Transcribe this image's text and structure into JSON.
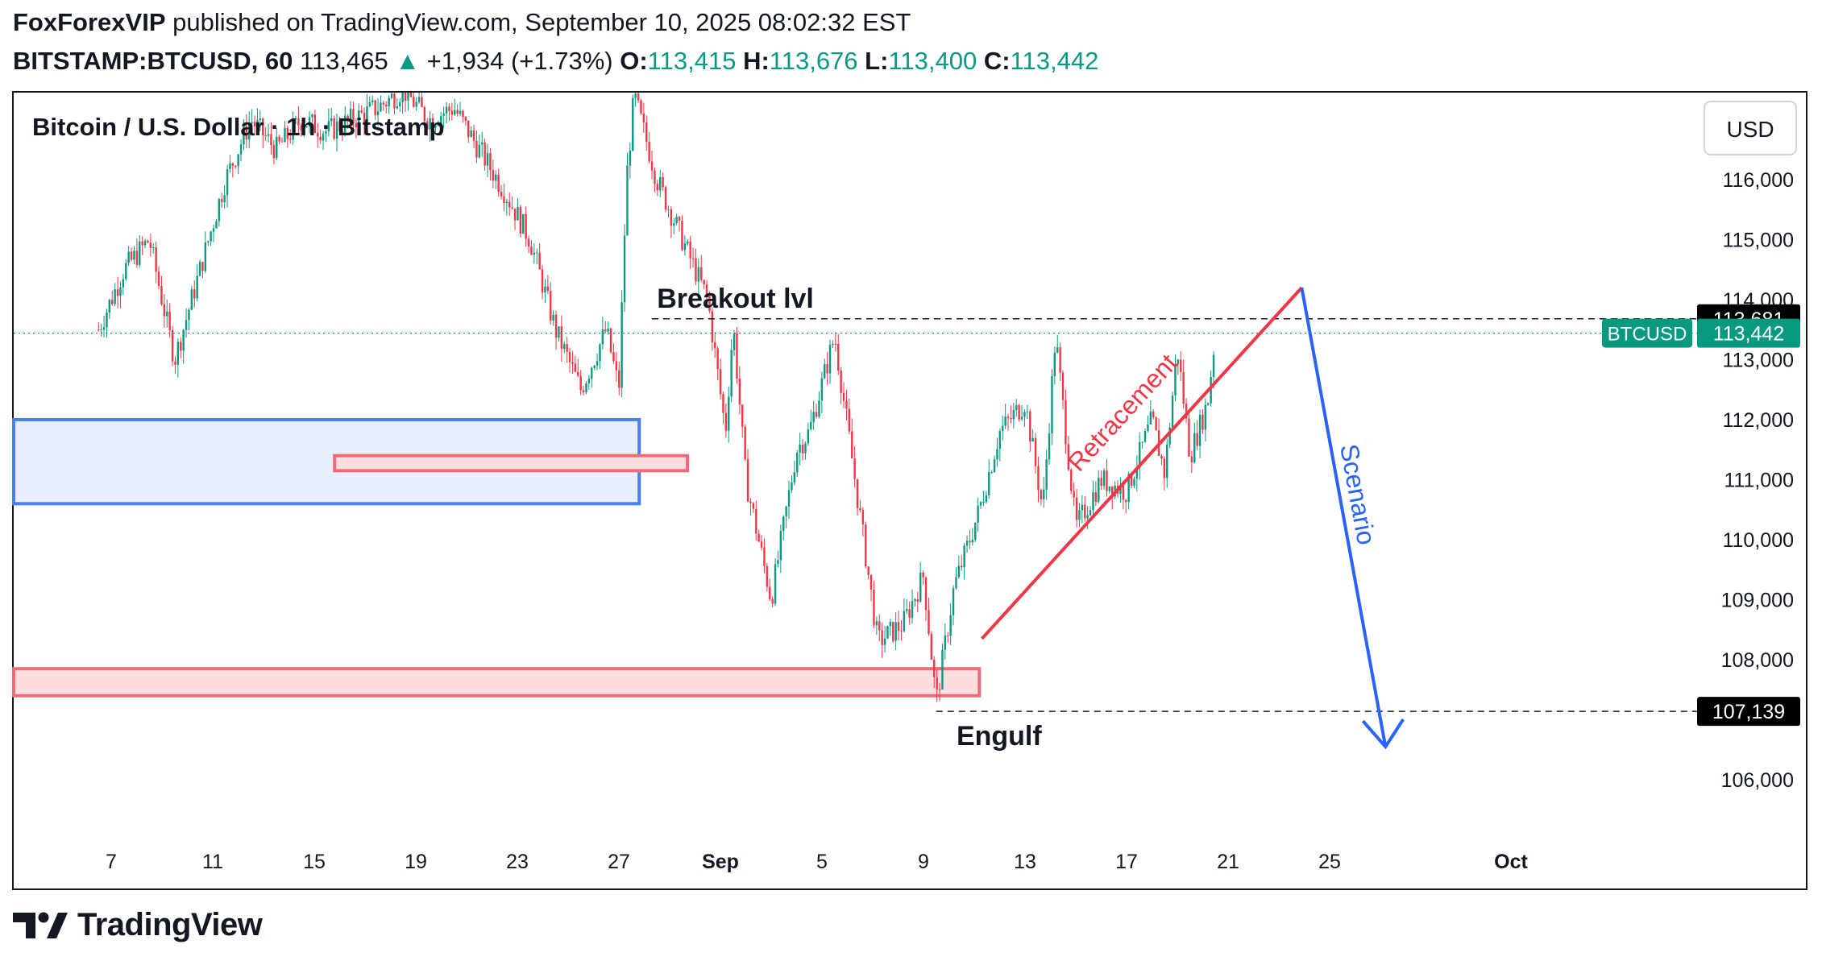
{
  "header": {
    "author": "FoxForexVIP",
    "published_text": "published on TradingView.com, September 10, 2025 08:02:32 EST",
    "symbol": "BITSTAMP:BTCUSD, 60",
    "last": "113,465",
    "change_arrow": "▲",
    "change": "+1,934 (+1.73%)",
    "open_label": "O:",
    "open": "113,415",
    "high_label": "H:",
    "high": "113,676",
    "low_label": "L:",
    "low": "113,400",
    "close_label": "C:",
    "close": "113,442"
  },
  "chart_title": "Bitcoin / U.S. Dollar · 1h · Bitstamp",
  "currency_button": "USD",
  "footer": {
    "brand": "TradingView"
  },
  "colors": {
    "up": "#089981",
    "down": "#f23645",
    "blue": "#2962ff",
    "zone_blue_stroke": "#4a7dff",
    "zone_blue_fill": "#e8efff",
    "zone_red_stroke": "#f06b78",
    "zone_red_fill": "#fcdde0"
  },
  "chart_data": {
    "type": "candlestick",
    "title": "Bitcoin / U.S. Dollar · 1h · Bitstamp",
    "ylim": [
      105000,
      117500
    ],
    "x_ticks": [
      {
        "label": "7",
        "bold": false
      },
      {
        "label": "11",
        "bold": false
      },
      {
        "label": "15",
        "bold": false
      },
      {
        "label": "19",
        "bold": false
      },
      {
        "label": "23",
        "bold": false
      },
      {
        "label": "27",
        "bold": false
      },
      {
        "label": "Sep",
        "bold": true
      },
      {
        "label": "5",
        "bold": false
      },
      {
        "label": "9",
        "bold": false
      },
      {
        "label": "13",
        "bold": false
      },
      {
        "label": "17",
        "bold": false
      },
      {
        "label": "21",
        "bold": false
      },
      {
        "label": "25",
        "bold": false
      },
      {
        "label": "Oct",
        "bold": true
      }
    ],
    "y_ticks": [
      {
        "label": "116,000",
        "value": 116000
      },
      {
        "label": "115,000",
        "value": 115000
      },
      {
        "label": "114,000",
        "value": 114000
      },
      {
        "label": "113,000",
        "value": 113000
      },
      {
        "label": "112,000",
        "value": 112000
      },
      {
        "label": "111,000",
        "value": 111000
      },
      {
        "label": "110,000",
        "value": 110000
      },
      {
        "label": "109,000",
        "value": 109000
      },
      {
        "label": "108,000",
        "value": 108000
      },
      {
        "label": "106,000",
        "value": 106000
      }
    ],
    "price_labels": [
      {
        "label": "113,681",
        "value": 113681,
        "style": "black"
      },
      {
        "label": "113,442",
        "value": 113442,
        "style": "green",
        "tag": "BTCUSD"
      },
      {
        "label": "107,139",
        "value": 107139,
        "style": "black"
      }
    ],
    "price_path": [
      [
        3.5,
        113500
      ],
      [
        4.5,
        114500
      ],
      [
        5.5,
        115000
      ],
      [
        6.5,
        113000
      ],
      [
        7.5,
        114500
      ],
      [
        8.5,
        116000
      ],
      [
        9.5,
        117000
      ],
      [
        10.5,
        116500
      ],
      [
        11.5,
        117000
      ],
      [
        12.5,
        116800
      ],
      [
        13.5,
        117000
      ],
      [
        14.5,
        117200
      ],
      [
        15.5,
        117500
      ],
      [
        16.5,
        117000
      ],
      [
        17.5,
        117200
      ],
      [
        18.5,
        116500
      ],
      [
        19.5,
        115800
      ],
      [
        20.5,
        115000
      ],
      [
        21.5,
        113500
      ],
      [
        22.5,
        112500
      ],
      [
        23.5,
        113500
      ],
      [
        24,
        112500
      ],
      [
        24.3,
        116000
      ],
      [
        24.6,
        117400
      ],
      [
        25.5,
        116000
      ],
      [
        26.5,
        115000
      ],
      [
        27.5,
        114000
      ],
      [
        28.2,
        111800
      ],
      [
        28.5,
        113600
      ],
      [
        29,
        111000
      ],
      [
        30,
        109000
      ],
      [
        31,
        111500
      ],
      [
        31.5,
        111800
      ],
      [
        32.5,
        113400
      ],
      [
        33.3,
        111000
      ],
      [
        34.2,
        108300
      ],
      [
        35.2,
        108600
      ],
      [
        36,
        109400
      ],
      [
        36.5,
        107300
      ],
      [
        37.2,
        109200
      ],
      [
        38.2,
        110500
      ],
      [
        39,
        111800
      ],
      [
        40,
        112300
      ],
      [
        40.7,
        110500
      ],
      [
        41.2,
        113400
      ],
      [
        42,
        110200
      ],
      [
        43,
        111000
      ],
      [
        44,
        110800
      ],
      [
        45,
        112000
      ],
      [
        45.5,
        111100
      ],
      [
        46,
        113200
      ],
      [
        46.5,
        111400
      ],
      [
        47.2,
        112300
      ],
      [
        47.5,
        113442
      ]
    ],
    "projection": [
      {
        "x": 38.3,
        "y": 108350,
        "label": ""
      },
      {
        "x": 50.9,
        "y": 114200,
        "label": "Retracement"
      },
      {
        "x": 54.2,
        "y": 106550,
        "label": "Scenario"
      }
    ],
    "levels": [
      {
        "label": "Breakout lvl",
        "value": 113681
      },
      {
        "label": "Engulf",
        "value": 107139
      }
    ],
    "zones": [
      {
        "name": "blue-demand-zone",
        "y_top": 112000,
        "y_bottom": 110600,
        "x_end": 24.8
      },
      {
        "name": "small-red-zone",
        "y_top": 111400,
        "y_bottom": 111150,
        "x_end": 26.7
      },
      {
        "name": "bottom-red-zone",
        "y_top": 107850,
        "y_bottom": 107400,
        "x_end": 38.2
      }
    ],
    "annotations": [
      "Breakout lvl",
      "Engulf",
      "Retracement",
      "Scenario"
    ]
  }
}
